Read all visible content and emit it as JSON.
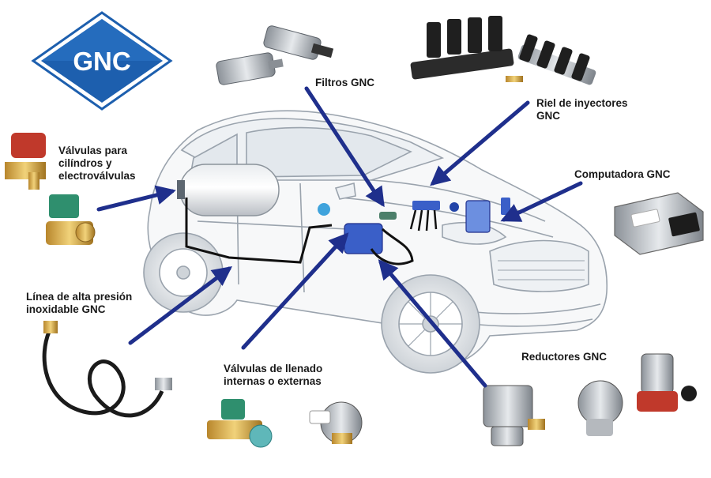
{
  "logo": {
    "text": "GNC"
  },
  "labels": {
    "filtros": "Filtros GNC",
    "riel": "Riel de inyectores\nGNC",
    "valvulas_cilindros": "Válvulas para\ncilíndros y\nelectroválvulas",
    "computadora": "Computadora GNC",
    "linea": "Línea de alta presión\ninoxidable GNC",
    "valvulas_llenado": "Válvulas de llenado\ninternas o externas",
    "reductores": "Reductores GNC"
  },
  "colors": {
    "arrow": "#1f2f8c",
    "logo_fill": "#1d5fae",
    "logo_border": "#ffffff",
    "car_outline": "#9aa3ad",
    "component_blue": "#3a5fc8"
  }
}
